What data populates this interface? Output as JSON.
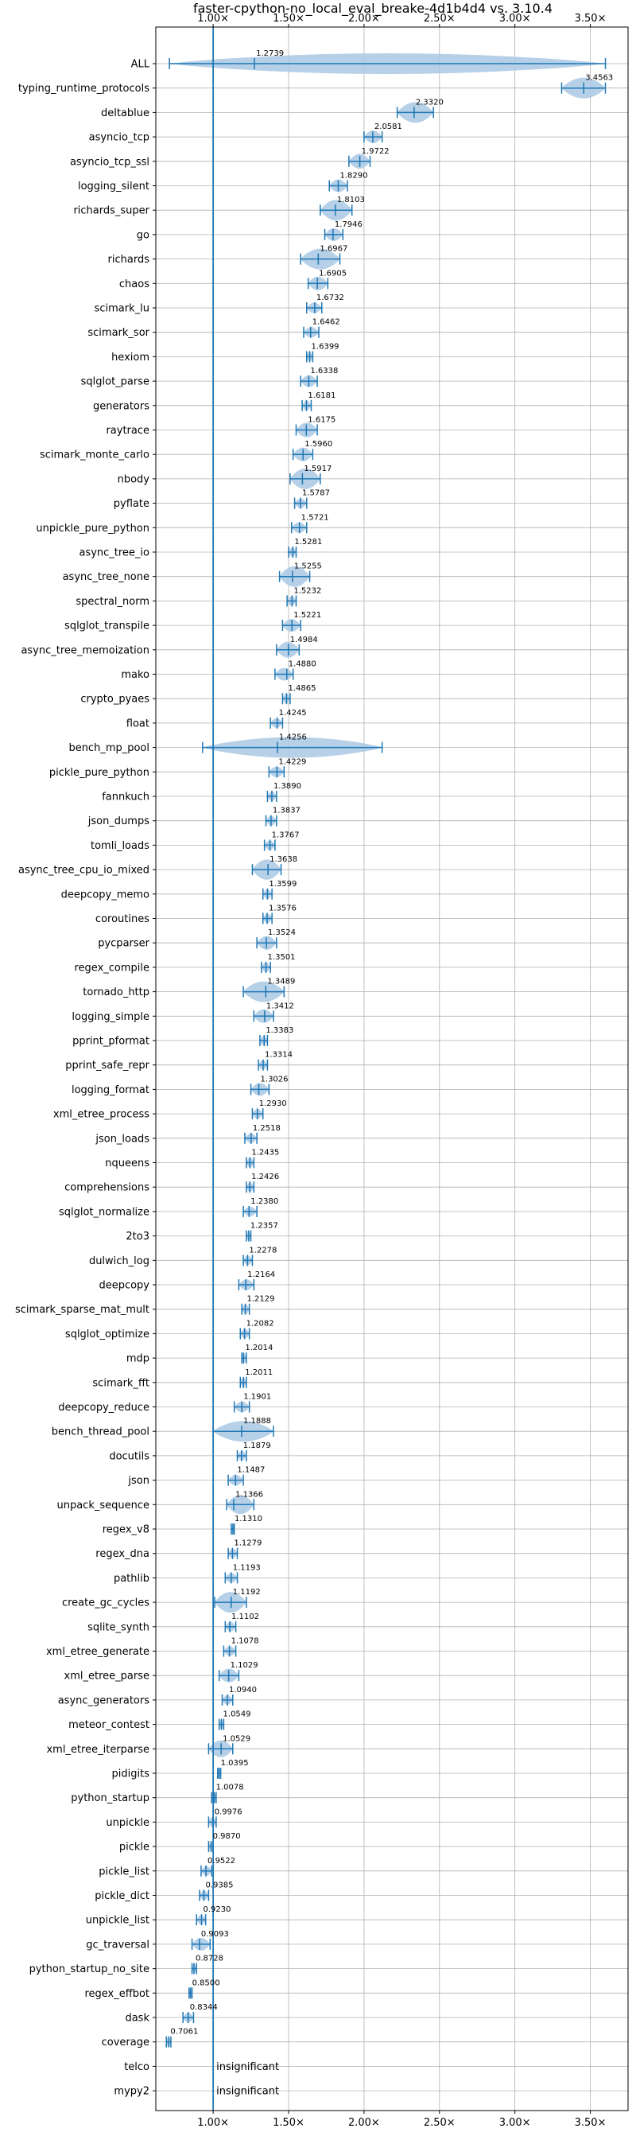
{
  "chart_data": {
    "type": "violin",
    "title": "faster-cpython-no_local_eval_breake-4d1b4d4 vs. 3.10.4",
    "xlim": [
      0.62,
      3.75
    ],
    "xticks": [
      1.0,
      1.5,
      2.0,
      2.5,
      3.0,
      3.5
    ],
    "xtick_labels": [
      "1.00×",
      "1.50×",
      "2.00×",
      "2.50×",
      "3.00×",
      "3.50×"
    ],
    "ticks_position": "top and bottom",
    "grid": true,
    "reference_line": 1.0,
    "colors": {
      "line": "#1f77b4",
      "violin": "#a9c8e4"
    },
    "rows": [
      {
        "name": "ALL",
        "median": 1.2739,
        "label": "1.2739",
        "lo": 0.71,
        "hi": 3.6
      },
      {
        "name": "typing_runtime_protocols",
        "median": 3.4563,
        "label": "3.4563",
        "lo": 3.31,
        "hi": 3.6
      },
      {
        "name": "deltablue",
        "median": 2.332,
        "label": "2.3320",
        "lo": 2.22,
        "hi": 2.46
      },
      {
        "name": "asyncio_tcp",
        "median": 2.0581,
        "label": "2.0581",
        "lo": 2.0,
        "hi": 2.12
      },
      {
        "name": "asyncio_tcp_ssl",
        "median": 1.9722,
        "label": "1.9722",
        "lo": 1.9,
        "hi": 2.04
      },
      {
        "name": "logging_silent",
        "median": 1.829,
        "label": "1.8290",
        "lo": 1.77,
        "hi": 1.89
      },
      {
        "name": "richards_super",
        "median": 1.8103,
        "label": "1.8103",
        "lo": 1.71,
        "hi": 1.92
      },
      {
        "name": "go",
        "median": 1.7946,
        "label": "1.7946",
        "lo": 1.74,
        "hi": 1.86
      },
      {
        "name": "richards",
        "median": 1.6967,
        "label": "1.6967",
        "lo": 1.58,
        "hi": 1.84
      },
      {
        "name": "chaos",
        "median": 1.6905,
        "label": "1.6905",
        "lo": 1.63,
        "hi": 1.76
      },
      {
        "name": "scimark_lu",
        "median": 1.6732,
        "label": "1.6732",
        "lo": 1.62,
        "hi": 1.72
      },
      {
        "name": "scimark_sor",
        "median": 1.6462,
        "label": "1.6462",
        "lo": 1.6,
        "hi": 1.7
      },
      {
        "name": "hexiom",
        "median": 1.6399,
        "label": "1.6399",
        "lo": 1.62,
        "hi": 1.66
      },
      {
        "name": "sqlglot_parse",
        "median": 1.6338,
        "label": "1.6338",
        "lo": 1.58,
        "hi": 1.69
      },
      {
        "name": "generators",
        "median": 1.6181,
        "label": "1.6181",
        "lo": 1.59,
        "hi": 1.65
      },
      {
        "name": "raytrace",
        "median": 1.6175,
        "label": "1.6175",
        "lo": 1.55,
        "hi": 1.69
      },
      {
        "name": "scimark_monte_carlo",
        "median": 1.596,
        "label": "1.5960",
        "lo": 1.53,
        "hi": 1.66
      },
      {
        "name": "nbody",
        "median": 1.5917,
        "label": "1.5917",
        "lo": 1.51,
        "hi": 1.71
      },
      {
        "name": "pyflate",
        "median": 1.5787,
        "label": "1.5787",
        "lo": 1.54,
        "hi": 1.62
      },
      {
        "name": "unpickle_pure_python",
        "median": 1.5721,
        "label": "1.5721",
        "lo": 1.52,
        "hi": 1.62
      },
      {
        "name": "async_tree_io",
        "median": 1.5281,
        "label": "1.5281",
        "lo": 1.5,
        "hi": 1.55
      },
      {
        "name": "async_tree_none",
        "median": 1.5255,
        "label": "1.5255",
        "lo": 1.44,
        "hi": 1.64
      },
      {
        "name": "spectral_norm",
        "median": 1.5232,
        "label": "1.5232",
        "lo": 1.49,
        "hi": 1.55
      },
      {
        "name": "sqlglot_transpile",
        "median": 1.5221,
        "label": "1.5221",
        "lo": 1.46,
        "hi": 1.58
      },
      {
        "name": "async_tree_memoization",
        "median": 1.4984,
        "label": "1.4984",
        "lo": 1.42,
        "hi": 1.57
      },
      {
        "name": "mako",
        "median": 1.488,
        "label": "1.4880",
        "lo": 1.41,
        "hi": 1.53
      },
      {
        "name": "crypto_pyaes",
        "median": 1.4865,
        "label": "1.4865",
        "lo": 1.46,
        "hi": 1.51
      },
      {
        "name": "float",
        "median": 1.4245,
        "label": "1.4245",
        "lo": 1.38,
        "hi": 1.46
      },
      {
        "name": "bench_mp_pool",
        "median": 1.4256,
        "label": "1.4256",
        "lo": 0.93,
        "hi": 2.12
      },
      {
        "name": "pickle_pure_python",
        "median": 1.4229,
        "label": "1.4229",
        "lo": 1.37,
        "hi": 1.47
      },
      {
        "name": "fannkuch",
        "median": 1.389,
        "label": "1.3890",
        "lo": 1.36,
        "hi": 1.42
      },
      {
        "name": "json_dumps",
        "median": 1.3837,
        "label": "1.3837",
        "lo": 1.35,
        "hi": 1.42
      },
      {
        "name": "tomli_loads",
        "median": 1.3767,
        "label": "1.3767",
        "lo": 1.34,
        "hi": 1.41
      },
      {
        "name": "async_tree_cpu_io_mixed",
        "median": 1.3638,
        "label": "1.3638",
        "lo": 1.26,
        "hi": 1.45
      },
      {
        "name": "deepcopy_memo",
        "median": 1.3599,
        "label": "1.3599",
        "lo": 1.33,
        "hi": 1.39
      },
      {
        "name": "coroutines",
        "median": 1.3576,
        "label": "1.3576",
        "lo": 1.33,
        "hi": 1.39
      },
      {
        "name": "pycparser",
        "median": 1.3524,
        "label": "1.3524",
        "lo": 1.29,
        "hi": 1.42
      },
      {
        "name": "regex_compile",
        "median": 1.3501,
        "label": "1.3501",
        "lo": 1.32,
        "hi": 1.38
      },
      {
        "name": "tornado_http",
        "median": 1.3489,
        "label": "1.3489",
        "lo": 1.2,
        "hi": 1.47
      },
      {
        "name": "logging_simple",
        "median": 1.3412,
        "label": "1.3412",
        "lo": 1.27,
        "hi": 1.4
      },
      {
        "name": "pprint_pformat",
        "median": 1.3383,
        "label": "1.3383",
        "lo": 1.31,
        "hi": 1.36
      },
      {
        "name": "pprint_safe_repr",
        "median": 1.3314,
        "label": "1.3314",
        "lo": 1.3,
        "hi": 1.36
      },
      {
        "name": "logging_format",
        "median": 1.3026,
        "label": "1.3026",
        "lo": 1.25,
        "hi": 1.37
      },
      {
        "name": "xml_etree_process",
        "median": 1.293,
        "label": "1.2930",
        "lo": 1.26,
        "hi": 1.33
      },
      {
        "name": "json_loads",
        "median": 1.2518,
        "label": "1.2518",
        "lo": 1.21,
        "hi": 1.29
      },
      {
        "name": "nqueens",
        "median": 1.2435,
        "label": "1.2435",
        "lo": 1.22,
        "hi": 1.27
      },
      {
        "name": "comprehensions",
        "median": 1.2426,
        "label": "1.2426",
        "lo": 1.22,
        "hi": 1.27
      },
      {
        "name": "sqlglot_normalize",
        "median": 1.238,
        "label": "1.2380",
        "lo": 1.2,
        "hi": 1.29
      },
      {
        "name": "2to3",
        "median": 1.2357,
        "label": "1.2357",
        "lo": 1.22,
        "hi": 1.25
      },
      {
        "name": "dulwich_log",
        "median": 1.2278,
        "label": "1.2278",
        "lo": 1.2,
        "hi": 1.26
      },
      {
        "name": "deepcopy",
        "median": 1.2164,
        "label": "1.2164",
        "lo": 1.17,
        "hi": 1.27
      },
      {
        "name": "scimark_sparse_mat_mult",
        "median": 1.2129,
        "label": "1.2129",
        "lo": 1.19,
        "hi": 1.24
      },
      {
        "name": "sqlglot_optimize",
        "median": 1.2082,
        "label": "1.2082",
        "lo": 1.18,
        "hi": 1.24
      },
      {
        "name": "mdp",
        "median": 1.2014,
        "label": "1.2014",
        "lo": 1.19,
        "hi": 1.22
      },
      {
        "name": "scimark_fft",
        "median": 1.2011,
        "label": "1.2011",
        "lo": 1.18,
        "hi": 1.22
      },
      {
        "name": "deepcopy_reduce",
        "median": 1.1901,
        "label": "1.1901",
        "lo": 1.14,
        "hi": 1.24
      },
      {
        "name": "bench_thread_pool",
        "median": 1.1888,
        "label": "1.1888",
        "lo": 1.0,
        "hi": 1.4
      },
      {
        "name": "docutils",
        "median": 1.1879,
        "label": "1.1879",
        "lo": 1.16,
        "hi": 1.22
      },
      {
        "name": "json",
        "median": 1.1487,
        "label": "1.1487",
        "lo": 1.1,
        "hi": 1.2
      },
      {
        "name": "unpack_sequence",
        "median": 1.1366,
        "label": "1.1366",
        "lo": 1.09,
        "hi": 1.27
      },
      {
        "name": "regex_v8",
        "median": 1.131,
        "label": "1.1310",
        "lo": 1.12,
        "hi": 1.14
      },
      {
        "name": "regex_dna",
        "median": 1.1279,
        "label": "1.1279",
        "lo": 1.1,
        "hi": 1.16
      },
      {
        "name": "pathlib",
        "median": 1.1193,
        "label": "1.1193",
        "lo": 1.08,
        "hi": 1.16
      },
      {
        "name": "create_gc_cycles",
        "median": 1.1192,
        "label": "1.1192",
        "lo": 1.01,
        "hi": 1.22
      },
      {
        "name": "sqlite_synth",
        "median": 1.1102,
        "label": "1.1102",
        "lo": 1.08,
        "hi": 1.15
      },
      {
        "name": "xml_etree_generate",
        "median": 1.1078,
        "label": "1.1078",
        "lo": 1.07,
        "hi": 1.15
      },
      {
        "name": "xml_etree_parse",
        "median": 1.1029,
        "label": "1.1029",
        "lo": 1.04,
        "hi": 1.17
      },
      {
        "name": "async_generators",
        "median": 1.094,
        "label": "1.0940",
        "lo": 1.06,
        "hi": 1.13
      },
      {
        "name": "meteor_contest",
        "median": 1.0549,
        "label": "1.0549",
        "lo": 1.04,
        "hi": 1.07
      },
      {
        "name": "xml_etree_iterparse",
        "median": 1.0529,
        "label": "1.0529",
        "lo": 0.97,
        "hi": 1.13
      },
      {
        "name": "pidigits",
        "median": 1.0395,
        "label": "1.0395",
        "lo": 1.03,
        "hi": 1.05
      },
      {
        "name": "python_startup",
        "median": 1.0078,
        "label": "1.0078",
        "lo": 0.99,
        "hi": 1.02
      },
      {
        "name": "unpickle",
        "median": 0.9976,
        "label": "0.9976",
        "lo": 0.97,
        "hi": 1.02
      },
      {
        "name": "pickle",
        "median": 0.987,
        "label": "0.9870",
        "lo": 0.97,
        "hi": 1.0
      },
      {
        "name": "pickle_list",
        "median": 0.9522,
        "label": "0.9522",
        "lo": 0.92,
        "hi": 0.99
      },
      {
        "name": "pickle_dict",
        "median": 0.9385,
        "label": "0.9385",
        "lo": 0.91,
        "hi": 0.97
      },
      {
        "name": "unpickle_list",
        "median": 0.923,
        "label": "0.9230",
        "lo": 0.89,
        "hi": 0.95
      },
      {
        "name": "gc_traversal",
        "median": 0.9093,
        "label": "0.9093",
        "lo": 0.86,
        "hi": 0.98
      },
      {
        "name": "python_startup_no_site",
        "median": 0.8728,
        "label": "0.8728",
        "lo": 0.86,
        "hi": 0.89
      },
      {
        "name": "regex_effbot",
        "median": 0.85,
        "label": "0.8500",
        "lo": 0.84,
        "hi": 0.86
      },
      {
        "name": "dask",
        "median": 0.8344,
        "label": "0.8344",
        "lo": 0.8,
        "hi": 0.87
      },
      {
        "name": "coverage",
        "median": 0.7061,
        "label": "0.7061",
        "lo": 0.69,
        "hi": 0.72
      },
      {
        "name": "telco",
        "insignificant": true,
        "label": "insignificant"
      },
      {
        "name": "mypy2",
        "insignificant": true,
        "label": "insignificant"
      }
    ]
  }
}
